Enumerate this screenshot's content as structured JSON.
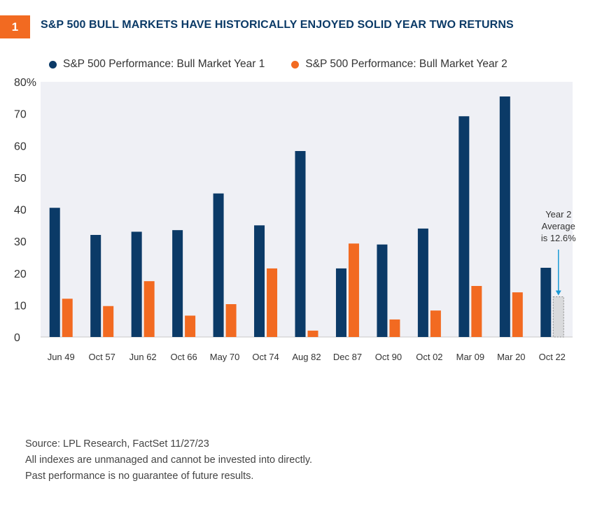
{
  "header": {
    "figure_number": "1",
    "title": "S&P 500 BULL MARKETS HAVE HISTORICALLY ENJOYED SOLID YEAR TWO RETURNS"
  },
  "colors": {
    "accent": "#f26a21",
    "series_year1": "#0b3a67",
    "series_year2": "#f26a21",
    "plot_background": "#eff0f5",
    "average_bar": "#d9dadc",
    "annotation_arrow": "#1a9ad6"
  },
  "chart_data": {
    "type": "bar",
    "title": "S&P 500 BULL MARKETS HAVE HISTORICALLY ENJOYED SOLID YEAR TWO RETURNS",
    "categories": [
      "Jun 49",
      "Oct 57",
      "Jun 62",
      "Oct 66",
      "May 70",
      "Oct 74",
      "Aug 82",
      "Dec 87",
      "Oct 90",
      "Oct 02",
      "Mar 09",
      "Mar 20",
      "Oct 22"
    ],
    "series": [
      {
        "name": "S&P 500 Performance: Bull Market Year 1",
        "values": [
          40.5,
          32,
          33,
          33.5,
          45,
          35,
          58.3,
          21.5,
          29,
          34,
          69.2,
          75.4,
          21.7
        ]
      },
      {
        "name": "S&P 500 Performance: Bull Market Year 2",
        "values": [
          12,
          9.7,
          17.5,
          6.7,
          10.3,
          21.5,
          2,
          29.3,
          5.5,
          8.3,
          16,
          14,
          null
        ]
      }
    ],
    "average_marker": {
      "category": "Oct 22",
      "series": "Year 2 average",
      "value": 12.6
    },
    "annotation": [
      "Year 2",
      "Average",
      "is 12.6%"
    ],
    "y_tick_labels": [
      "80%",
      "70",
      "60",
      "50",
      "40",
      "30",
      "20",
      "10",
      "0"
    ],
    "xlabel": "",
    "ylabel": "",
    "ylim": [
      0,
      80
    ],
    "grid": false,
    "legend_position": "top-left"
  },
  "footer": {
    "source": "Source: LPL Research, FactSet  11/27/23",
    "disclaimer_1": "All indexes are unmanaged and cannot be invested into directly.",
    "disclaimer_2": "Past performance is no guarantee of future results."
  }
}
